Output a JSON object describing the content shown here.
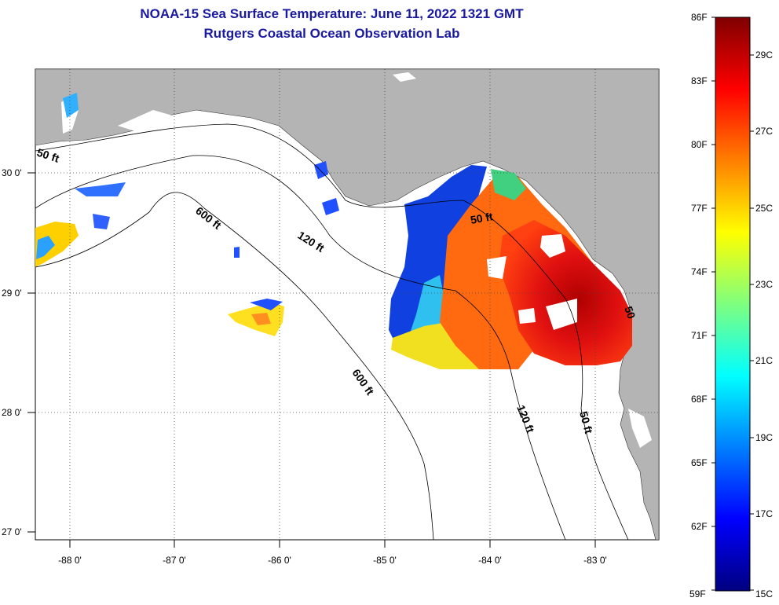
{
  "title": {
    "line1": "NOAA-15 Sea Surface Temperature:  June 11, 2022 1321 GMT",
    "line2": "Rutgers Coastal Ocean Observation Lab"
  },
  "map": {
    "lat_labels": [
      "30 0'",
      "29 0'",
      "28 0'",
      "27 0'"
    ],
    "lon_labels": [
      "-88 0'",
      "-87 0'",
      "-86 0'",
      "-85 0'",
      "-84 0'",
      "-83 0'"
    ],
    "contour_labels": [
      "50 ft",
      "600 ft",
      "120 ft",
      "600 ft",
      "50 ft",
      "120 ft",
      "50 ft",
      "50"
    ]
  },
  "colorbar": {
    "fahrenheit_labels": [
      "86F",
      "83F",
      "80F",
      "77F",
      "74F",
      "71F",
      "68F",
      "65F",
      "62F",
      "59F"
    ],
    "celsius_labels": [
      "29C",
      "27C",
      "25C",
      "23C",
      "21C",
      "19C",
      "17C",
      "15C"
    ],
    "colors": [
      "#00007f",
      "#0000ff",
      "#007fff",
      "#00ffff",
      "#7fff7f",
      "#ffff00",
      "#ff7f00",
      "#ff0000",
      "#7f0000"
    ]
  },
  "colors": {
    "land": "#b4b4b4",
    "ocean": "#ffffff",
    "title": "#1a1aa0"
  }
}
